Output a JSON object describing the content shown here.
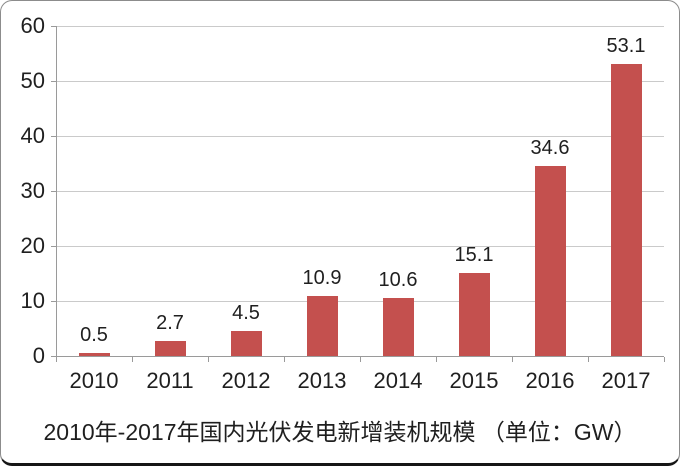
{
  "chart_data": {
    "type": "bar",
    "categories": [
      "2010",
      "2011",
      "2012",
      "2013",
      "2014",
      "2015",
      "2016",
      "2017"
    ],
    "values": [
      0.5,
      2.7,
      4.5,
      10.9,
      10.6,
      15.1,
      34.6,
      53.1
    ],
    "data_labels": [
      "0.5",
      "2.7",
      "4.5",
      "10.9",
      "10.6",
      "15.1",
      "34.6",
      "53.1"
    ],
    "title": "2010年-2017年国内光伏发电新增装机规模 （单位：GW）",
    "xlabel": "",
    "ylabel": "",
    "ylim": [
      0,
      60
    ],
    "yticks": [
      0,
      10,
      20,
      30,
      40,
      50,
      60
    ],
    "grid": "horizontal",
    "legend": "none",
    "bar_color": "#C4504E",
    "gridline_color": "#CACACA",
    "axis_color": "#9A9A9A",
    "text_color": "#1F1F1F"
  }
}
